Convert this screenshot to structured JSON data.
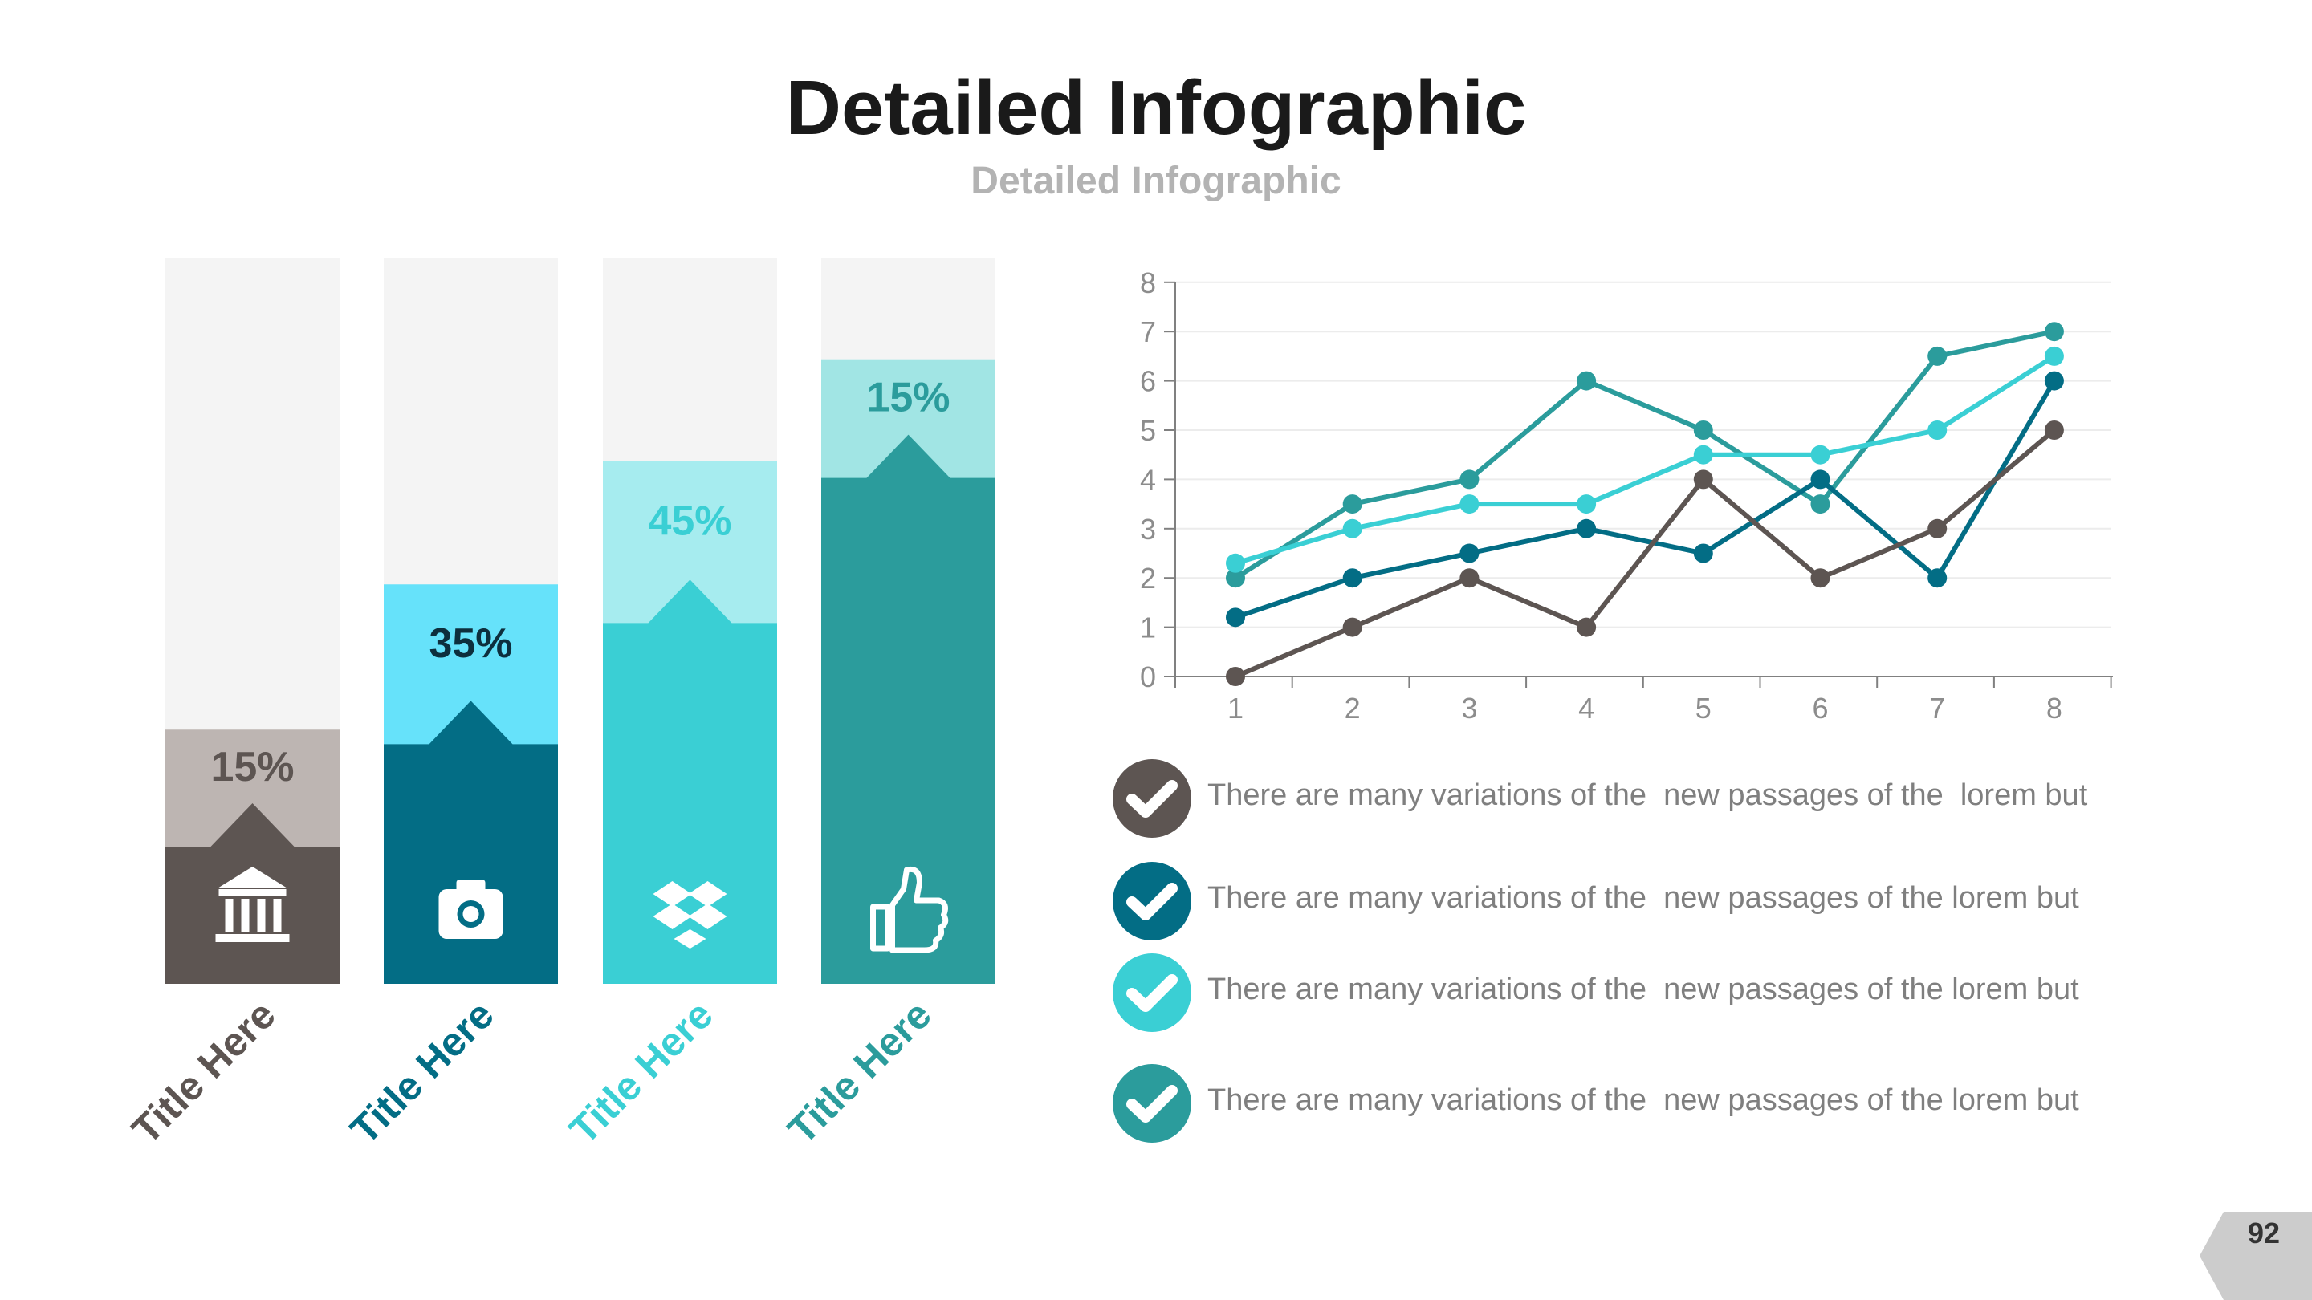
{
  "header": {
    "title": "Detailed Infographic",
    "subtitle": "Detailed Infographic"
  },
  "bar_panels": [
    {
      "title": "Title Here",
      "percent_label": "15%",
      "value": 35,
      "fill": 0.54,
      "color": "#5d5552",
      "light_color": "#bdb5b2",
      "label_color": "#5d5552",
      "icon": "bank-icon"
    },
    {
      "title": "Title Here",
      "percent_label": "35%",
      "value": 55,
      "fill": 0.6,
      "color": "#036d85",
      "light_color": "#66e2fa",
      "label_color": "#036d85",
      "icon": "camera-icon"
    },
    {
      "title": "Title Here",
      "percent_label": "45%",
      "value": 72,
      "fill": 0.69,
      "color": "#3acfd4",
      "light_color": "#a6ecef",
      "label_color": "#3acfd4",
      "icon": "dropbox-icon"
    },
    {
      "title": "Title Here",
      "percent_label": "15%",
      "value": 86,
      "fill": 0.81,
      "color": "#2b9c9c",
      "light_color": "#a1e5e4",
      "label_color": "#2b9c9c",
      "icon": "thumbs-up-icon"
    }
  ],
  "chart_data": {
    "type": "line",
    "x": [
      1,
      2,
      3,
      4,
      5,
      6,
      7,
      8
    ],
    "ylim": [
      0,
      8
    ],
    "yticks": [
      0,
      1,
      2,
      3,
      4,
      5,
      6,
      7,
      8
    ],
    "grid": true,
    "series": [
      {
        "color": "#2b9c9c",
        "values": [
          2,
          3.5,
          4,
          6,
          5,
          3.5,
          6.5,
          7
        ]
      },
      {
        "color": "#3acfd4",
        "values": [
          2.3,
          3,
          3.5,
          3.5,
          4.5,
          4.5,
          5,
          6.5
        ]
      },
      {
        "color": "#036d85",
        "values": [
          1.2,
          2,
          2.5,
          3,
          2.5,
          4,
          2,
          6
        ]
      },
      {
        "color": "#5d5552",
        "values": [
          0,
          1,
          2,
          1,
          4,
          2,
          3,
          5
        ]
      }
    ]
  },
  "legend": [
    {
      "text": "There are many variations of the  new passages of the  lorem but",
      "color": "#5d5552"
    },
    {
      "text": "There are many variations of the  new passages of the lorem but",
      "color": "#036d85"
    },
    {
      "text": "There are many variations of the  new passages of the lorem but",
      "color": "#3acfd4"
    },
    {
      "text": "There are many variations of the  new passages of the lorem but",
      "color": "#2b9c9c"
    }
  ],
  "footer": {
    "page_number": "92"
  }
}
